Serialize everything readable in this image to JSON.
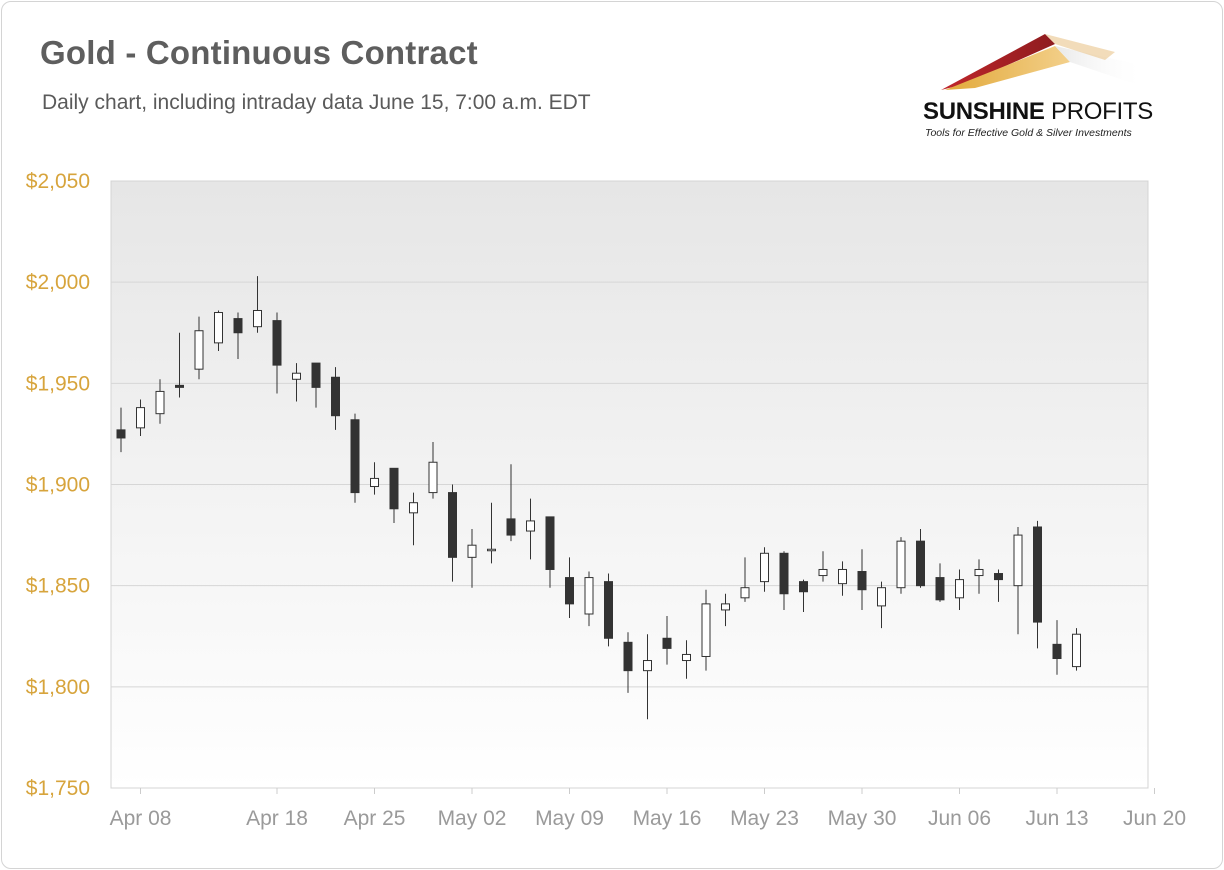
{
  "title": "Gold - Continuous Contract",
  "subtitle": "Daily chart, including intraday data June 15, 7:00 a.m. EDT",
  "logo": {
    "name_bold": "SUNSHINE",
    "name_light": "PROFITS",
    "tagline": "Tools for Effective Gold & Silver Investments"
  },
  "colors": {
    "title": "#5e5e5e",
    "y_tick": "#d7a43c",
    "x_tick": "#9a9a9a",
    "down_candle": "#333333",
    "up_candle": "#ffffff"
  },
  "chart_data": {
    "type": "candlestick",
    "y_tick_labels": [
      "$1,750",
      "$1,800",
      "$1,850",
      "$1,900",
      "$1,950",
      "$2,000",
      "$2,050"
    ],
    "y_tick_values": [
      1750,
      1800,
      1850,
      1900,
      1950,
      2000,
      2050
    ],
    "ylim": [
      1750,
      2050
    ],
    "x_tick_labels": [
      "Apr 08",
      "Apr 18",
      "Apr 25",
      "May 02",
      "May 09",
      "May 16",
      "May 23",
      "May 30",
      "Jun 06",
      "Jun 13",
      "Jun 20"
    ],
    "x_tick_index": [
      1,
      8,
      13,
      18,
      23,
      28,
      33,
      38,
      43,
      48,
      53
    ],
    "grid": true,
    "candles": [
      {
        "i": 0,
        "o": 1927,
        "h": 1938,
        "l": 1916,
        "c": 1923
      },
      {
        "i": 1,
        "o": 1928,
        "h": 1942,
        "l": 1924,
        "c": 1938
      },
      {
        "i": 2,
        "o": 1935,
        "h": 1952,
        "l": 1930,
        "c": 1946
      },
      {
        "i": 3,
        "o": 1949,
        "h": 1975,
        "l": 1943,
        "c": 1948
      },
      {
        "i": 4,
        "o": 1957,
        "h": 1983,
        "l": 1952,
        "c": 1976
      },
      {
        "i": 5,
        "o": 1970,
        "h": 1986,
        "l": 1966,
        "c": 1985
      },
      {
        "i": 6,
        "o": 1982,
        "h": 1985,
        "l": 1962,
        "c": 1975
      },
      {
        "i": 7,
        "o": 1978,
        "h": 2003,
        "l": 1975,
        "c": 1986
      },
      {
        "i": 8,
        "o": 1981,
        "h": 1985,
        "l": 1945,
        "c": 1959
      },
      {
        "i": 9,
        "o": 1952,
        "h": 1960,
        "l": 1941,
        "c": 1955
      },
      {
        "i": 10,
        "o": 1960,
        "h": 1960,
        "l": 1938,
        "c": 1948
      },
      {
        "i": 11,
        "o": 1953,
        "h": 1958,
        "l": 1927,
        "c": 1934
      },
      {
        "i": 12,
        "o": 1932,
        "h": 1935,
        "l": 1891,
        "c": 1896
      },
      {
        "i": 13,
        "o": 1899,
        "h": 1911,
        "l": 1895,
        "c": 1903
      },
      {
        "i": 14,
        "o": 1908,
        "h": 1908,
        "l": 1881,
        "c": 1888
      },
      {
        "i": 15,
        "o": 1886,
        "h": 1896,
        "l": 1870,
        "c": 1891
      },
      {
        "i": 16,
        "o": 1896,
        "h": 1921,
        "l": 1893,
        "c": 1911
      },
      {
        "i": 17,
        "o": 1896,
        "h": 1900,
        "l": 1852,
        "c": 1864
      },
      {
        "i": 18,
        "o": 1864,
        "h": 1878,
        "l": 1849,
        "c": 1870
      },
      {
        "i": 19,
        "o": 1868,
        "h": 1891,
        "l": 1861,
        "c": 1868
      },
      {
        "i": 20,
        "o": 1883,
        "h": 1910,
        "l": 1872,
        "c": 1875
      },
      {
        "i": 21,
        "o": 1877,
        "h": 1893,
        "l": 1863,
        "c": 1882
      },
      {
        "i": 22,
        "o": 1884,
        "h": 1884,
        "l": 1849,
        "c": 1858
      },
      {
        "i": 23,
        "o": 1854,
        "h": 1864,
        "l": 1834,
        "c": 1841
      },
      {
        "i": 24,
        "o": 1836,
        "h": 1857,
        "l": 1830,
        "c": 1854
      },
      {
        "i": 25,
        "o": 1852,
        "h": 1856,
        "l": 1820,
        "c": 1824
      },
      {
        "i": 26,
        "o": 1822,
        "h": 1827,
        "l": 1797,
        "c": 1808
      },
      {
        "i": 27,
        "o": 1808,
        "h": 1826,
        "l": 1784,
        "c": 1813
      },
      {
        "i": 28,
        "o": 1824,
        "h": 1835,
        "l": 1811,
        "c": 1819
      },
      {
        "i": 29,
        "o": 1813,
        "h": 1823,
        "l": 1804,
        "c": 1816
      },
      {
        "i": 30,
        "o": 1815,
        "h": 1848,
        "l": 1808,
        "c": 1841
      },
      {
        "i": 31,
        "o": 1838,
        "h": 1846,
        "l": 1830,
        "c": 1841
      },
      {
        "i": 32,
        "o": 1844,
        "h": 1864,
        "l": 1842,
        "c": 1849
      },
      {
        "i": 33,
        "o": 1852,
        "h": 1869,
        "l": 1847,
        "c": 1866
      },
      {
        "i": 34,
        "o": 1866,
        "h": 1867,
        "l": 1838,
        "c": 1846
      },
      {
        "i": 35,
        "o": 1852,
        "h": 1853,
        "l": 1837,
        "c": 1847
      },
      {
        "i": 36,
        "o": 1855,
        "h": 1867,
        "l": 1852,
        "c": 1858
      },
      {
        "i": 37,
        "o": 1851,
        "h": 1862,
        "l": 1845,
        "c": 1858
      },
      {
        "i": 38,
        "o": 1857,
        "h": 1868,
        "l": 1838,
        "c": 1848
      },
      {
        "i": 39,
        "o": 1840,
        "h": 1852,
        "l": 1829,
        "c": 1849
      },
      {
        "i": 40,
        "o": 1849,
        "h": 1874,
        "l": 1846,
        "c": 1872
      },
      {
        "i": 41,
        "o": 1872,
        "h": 1878,
        "l": 1849,
        "c": 1850
      },
      {
        "i": 42,
        "o": 1854,
        "h": 1861,
        "l": 1842,
        "c": 1843
      },
      {
        "i": 43,
        "o": 1844,
        "h": 1858,
        "l": 1838,
        "c": 1853
      },
      {
        "i": 44,
        "o": 1855,
        "h": 1863,
        "l": 1846,
        "c": 1858
      },
      {
        "i": 45,
        "o": 1856,
        "h": 1858,
        "l": 1842,
        "c": 1853
      },
      {
        "i": 46,
        "o": 1850,
        "h": 1879,
        "l": 1826,
        "c": 1875
      },
      {
        "i": 47,
        "o": 1879,
        "h": 1882,
        "l": 1819,
        "c": 1832
      },
      {
        "i": 48,
        "o": 1821,
        "h": 1833,
        "l": 1806,
        "c": 1814
      },
      {
        "i": 49,
        "o": 1810,
        "h": 1829,
        "l": 1808,
        "c": 1826
      }
    ]
  }
}
